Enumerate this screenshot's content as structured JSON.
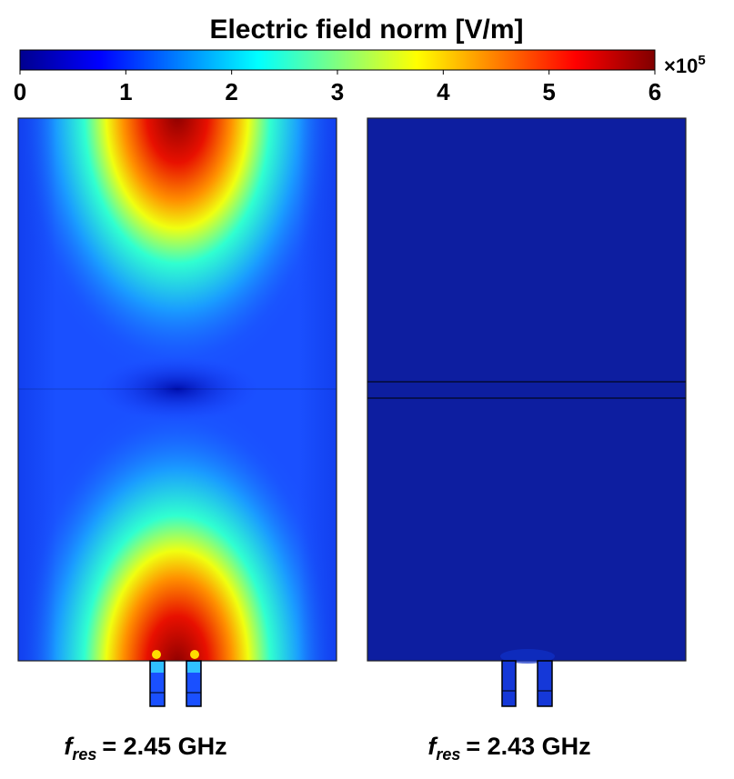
{
  "title": "Electric field norm [V/m]",
  "colorbar": {
    "range": [
      0,
      6
    ],
    "ticks": [
      0,
      1,
      2,
      3,
      4,
      5,
      6
    ],
    "multiplier": {
      "base": "×10",
      "exponent": "5"
    }
  },
  "panels": [
    {
      "label": {
        "symbol": "f",
        "subscript": "res",
        "text": "= 2.45 GHz"
      }
    },
    {
      "label": {
        "symbol": "f",
        "subscript": "res",
        "text": "= 2.43 GHz"
      }
    }
  ]
}
